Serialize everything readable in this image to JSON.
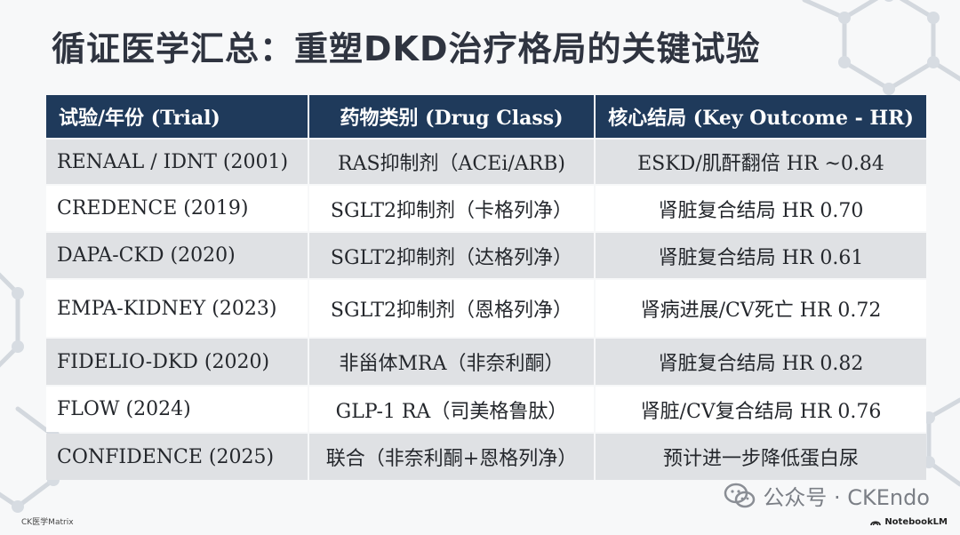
{
  "title": "循证医学汇总：重塑DKD治疗格局的关键试验",
  "table": {
    "headers": [
      "试验/年份 (Trial)",
      "药物类别 (Drug Class)",
      "核心结局 (Key Outcome - HR)"
    ],
    "rows": [
      [
        "RENAAL / IDNT (2001)",
        "RAS抑制剂（ACEi/ARB)",
        "ESKD/肌酐翻倍 HR ~0.84"
      ],
      [
        "CREDENCE (2019)",
        "SGLT2抑制剂（卡格列净）",
        "肾脏复合结局 HR 0.70"
      ],
      [
        "DAPA-CKD (2020)",
        "SGLT2抑制剂（达格列净）",
        "肾脏复合结局 HR 0.61"
      ],
      [
        "EMPA-KIDNEY (2023)",
        "SGLT2抑制剂（恩格列净）",
        "肾病进展/CV死亡 HR 0.72"
      ],
      [
        "FIDELIO-DKD (2020)",
        "非甾体MRA（非奈利酮）",
        "肾脏复合结局 HR 0.82"
      ],
      [
        "FLOW (2024)",
        "GLP-1 RA（司美格鲁肽）",
        "肾脏/CV复合结局 HR 0.76"
      ],
      [
        "CONFIDENCE (2025)",
        "联合（非奈利酮+恩格列净）",
        "预计进一步降低蛋白尿"
      ]
    ]
  },
  "watermark": {
    "text": "公众号 · CKEndo",
    "icon": "wechat-icon"
  },
  "footer": {
    "left_text": "CK医学Matrix",
    "right_text": "NotebookLM",
    "right_icon": "notebooklm-icon"
  },
  "colors": {
    "header_bg": "#1f3a5b",
    "row_odd": "#dfe1e4",
    "row_even": "#ffffff",
    "title": "#2f3440"
  }
}
